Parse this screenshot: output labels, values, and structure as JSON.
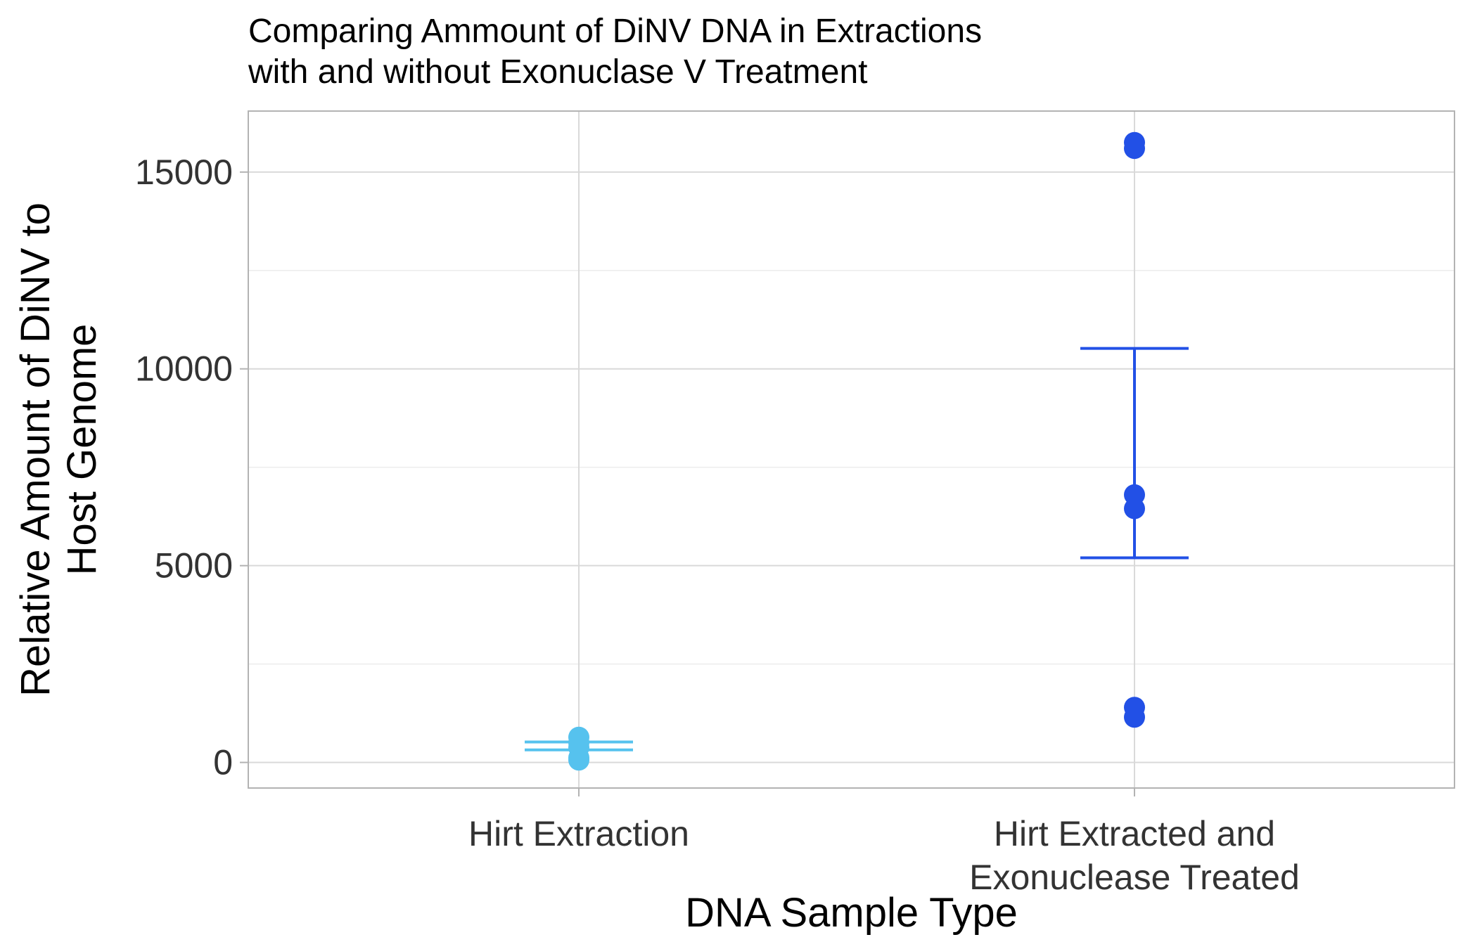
{
  "chart_data": {
    "type": "scatter",
    "title": "Comparing Ammount of DiNV DNA in Extractions\nwith and without Exonuclase V Treatment",
    "xlabel": "DNA Sample Type",
    "ylabel": "Relative Amount of DiNV to\nHost Genome",
    "categories": [
      "Hirt Extraction",
      "Hirt Extracted and\nExonuclease Treated"
    ],
    "ylim": [
      -650,
      16550
    ],
    "yticks": [
      0,
      5000,
      10000,
      15000
    ],
    "yticks_minor": [
      2500,
      7500,
      12500
    ],
    "grid": true,
    "legend": "none",
    "series": [
      {
        "category": "Hirt Extraction",
        "color": "#56c2ee",
        "points": [
          640,
          500,
          380,
          120,
          60
        ],
        "errorbar": {
          "low": 320,
          "high": 520
        }
      },
      {
        "category": "Hirt Extracted and\nExonuclease Treated",
        "color": "#2250e6",
        "points": [
          15750,
          15600,
          6800,
          6450,
          1400,
          1150
        ],
        "errorbar": {
          "low": 5200,
          "high": 10520
        }
      }
    ]
  }
}
